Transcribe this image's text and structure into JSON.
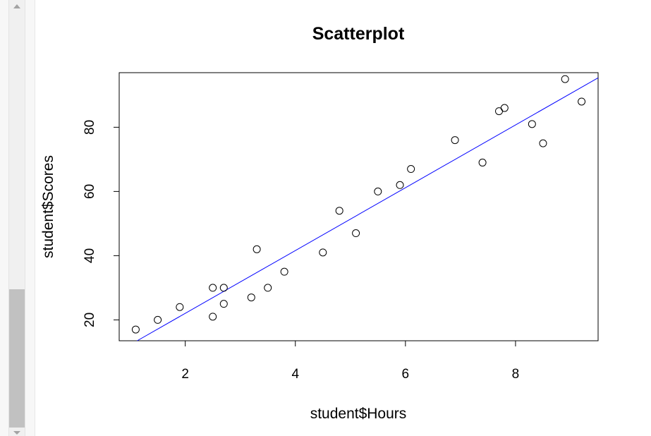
{
  "chart_data": {
    "type": "scatter",
    "title": "Scatterplot",
    "xlabel": "student$Hours",
    "ylabel": "student$Scores",
    "xlim": [
      0.8,
      9.5
    ],
    "ylim": [
      13.5,
      97
    ],
    "xticks": [
      2,
      4,
      6,
      8
    ],
    "yticks": [
      20,
      40,
      60,
      80
    ],
    "grid": false,
    "point_color": "#000000",
    "line_color": "#0000ff",
    "points": [
      {
        "x": 1.1,
        "y": 17
      },
      {
        "x": 1.5,
        "y": 20
      },
      {
        "x": 1.9,
        "y": 24
      },
      {
        "x": 2.5,
        "y": 30
      },
      {
        "x": 2.5,
        "y": 21
      },
      {
        "x": 2.7,
        "y": 30
      },
      {
        "x": 2.7,
        "y": 25
      },
      {
        "x": 3.2,
        "y": 27
      },
      {
        "x": 3.3,
        "y": 42
      },
      {
        "x": 3.5,
        "y": 30
      },
      {
        "x": 3.8,
        "y": 35
      },
      {
        "x": 4.5,
        "y": 41
      },
      {
        "x": 4.8,
        "y": 54
      },
      {
        "x": 5.1,
        "y": 47
      },
      {
        "x": 5.5,
        "y": 60
      },
      {
        "x": 5.9,
        "y": 62
      },
      {
        "x": 6.1,
        "y": 67
      },
      {
        "x": 6.9,
        "y": 76
      },
      {
        "x": 7.4,
        "y": 69
      },
      {
        "x": 7.7,
        "y": 85
      },
      {
        "x": 7.8,
        "y": 86
      },
      {
        "x": 8.3,
        "y": 81
      },
      {
        "x": 8.5,
        "y": 75
      },
      {
        "x": 8.9,
        "y": 95
      },
      {
        "x": 9.2,
        "y": 88
      }
    ],
    "regression_line": {
      "intercept": 2.48,
      "slope": 9.78
    }
  }
}
